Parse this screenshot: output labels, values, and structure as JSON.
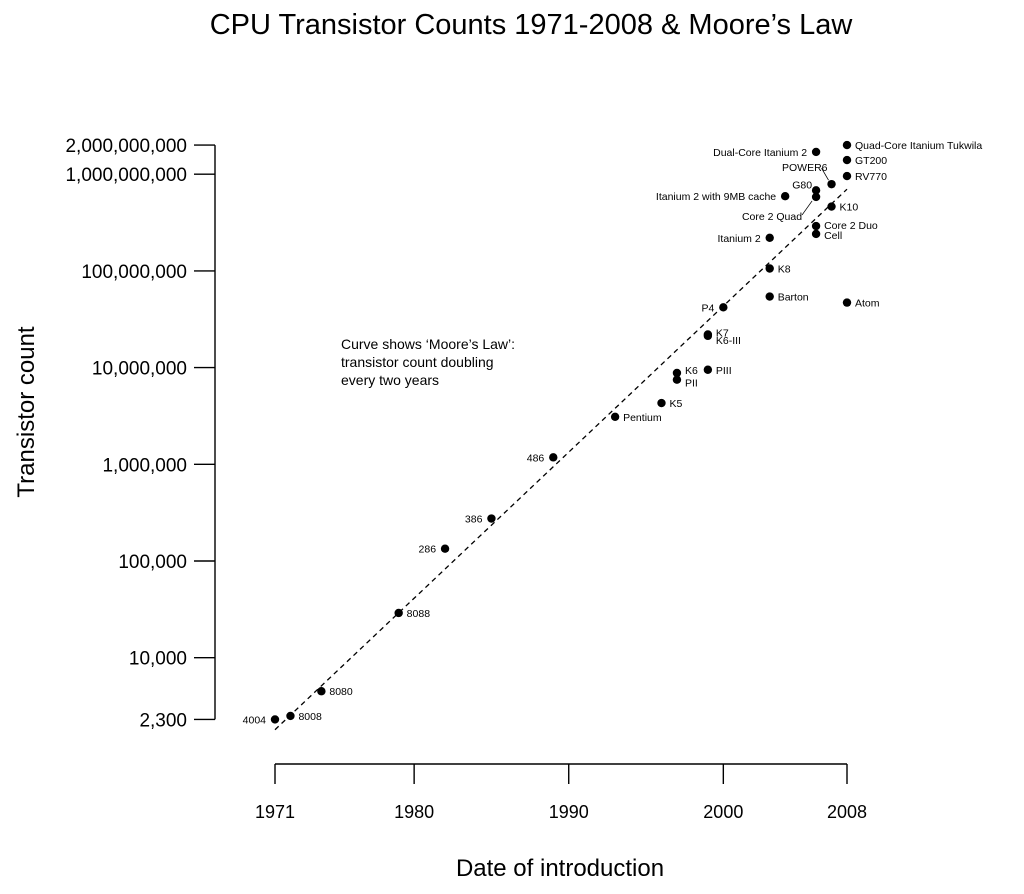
{
  "chart_data": {
    "type": "scatter",
    "title": "CPU Transistor Counts 1971-2008 & Moore’s Law",
    "xlabel": "Date of introduction",
    "ylabel": "Transistor count",
    "xlim": [
      1971,
      2008
    ],
    "ylim": [
      2300,
      2000000000
    ],
    "y_scale": "log",
    "grid": false,
    "x_ticks": [
      {
        "value": 1971,
        "label": "1971"
      },
      {
        "value": 1980,
        "label": "1980"
      },
      {
        "value": 1990,
        "label": "1990"
      },
      {
        "value": 2000,
        "label": "2000"
      },
      {
        "value": 2008,
        "label": "2008"
      }
    ],
    "y_ticks": [
      {
        "value": 2300,
        "label": "2,300"
      },
      {
        "value": 10000,
        "label": "10,000"
      },
      {
        "value": 100000,
        "label": "100,000"
      },
      {
        "value": 1000000,
        "label": "1,000,000"
      },
      {
        "value": 10000000,
        "label": "10,000,000"
      },
      {
        "value": 100000000,
        "label": "100,000,000"
      },
      {
        "value": 1000000000,
        "label": "1,000,000,000"
      },
      {
        "value": 2000000000,
        "label": "2,000,000,000"
      }
    ],
    "annotation": [
      "Curve shows ‘Moore’s Law’:",
      "transistor count doubling",
      "every two years"
    ],
    "trend_line": {
      "x": [
        1971,
        2008
      ],
      "y": [
        1800,
        700000000
      ]
    },
    "points": [
      {
        "label": "4004",
        "x": 1971,
        "y": 2300,
        "side": "left"
      },
      {
        "label": "8008",
        "x": 1972,
        "y": 2500,
        "side": "right"
      },
      {
        "label": "8080",
        "x": 1974,
        "y": 4500,
        "side": "right"
      },
      {
        "label": "8088",
        "x": 1979,
        "y": 29000,
        "side": "right"
      },
      {
        "label": "286",
        "x": 1982,
        "y": 134000,
        "side": "left"
      },
      {
        "label": "386",
        "x": 1985,
        "y": 275000,
        "side": "left"
      },
      {
        "label": "486",
        "x": 1989,
        "y": 1180000,
        "side": "left"
      },
      {
        "label": "Pentium",
        "x": 1993,
        "y": 3100000,
        "side": "right"
      },
      {
        "label": "K5",
        "x": 1996,
        "y": 4300000,
        "side": "right"
      },
      {
        "label": "K6",
        "x": 1997,
        "y": 8800000,
        "side": "right"
      },
      {
        "label": "PII",
        "x": 1997,
        "y": 7500000,
        "side": "right"
      },
      {
        "label": "PIII",
        "x": 1999,
        "y": 9500000,
        "side": "right"
      },
      {
        "label": "K6-III",
        "x": 1999,
        "y": 21300000,
        "side": "right"
      },
      {
        "label": "K7",
        "x": 1999,
        "y": 22000000,
        "side": "right"
      },
      {
        "label": "P4",
        "x": 2000,
        "y": 42000000,
        "side": "left"
      },
      {
        "label": "Barton",
        "x": 2003,
        "y": 54300000,
        "side": "right"
      },
      {
        "label": "K8",
        "x": 2003,
        "y": 105900000,
        "side": "right"
      },
      {
        "label": "Itanium 2",
        "x": 2003,
        "y": 220000000,
        "side": "left"
      },
      {
        "label": "Itanium 2 with 9MB cache",
        "x": 2004,
        "y": 592000000,
        "side": "left"
      },
      {
        "label": "Cell",
        "x": 2006,
        "y": 241000000,
        "side": "right"
      },
      {
        "label": "Core 2 Duo",
        "x": 2006,
        "y": 291000000,
        "side": "right"
      },
      {
        "label": "Core 2 Quad",
        "x": 2006,
        "y": 582000000,
        "side": "left"
      },
      {
        "label": "G80",
        "x": 2006,
        "y": 681000000,
        "side": "left"
      },
      {
        "label": "Dual-Core Itanium 2",
        "x": 2006,
        "y": 1700000000,
        "side": "left"
      },
      {
        "label": "POWER6",
        "x": 2007,
        "y": 789000000,
        "side": "left"
      },
      {
        "label": "K10",
        "x": 2007,
        "y": 463000000,
        "side": "right"
      },
      {
        "label": "Atom",
        "x": 2008,
        "y": 47000000,
        "side": "right"
      },
      {
        "label": "RV770",
        "x": 2008,
        "y": 956000000,
        "side": "right"
      },
      {
        "label": "GT200",
        "x": 2008,
        "y": 1400000000,
        "side": "right"
      },
      {
        "label": "Quad-Core Itanium Tukwila",
        "x": 2008,
        "y": 2000000000,
        "side": "right"
      }
    ]
  }
}
